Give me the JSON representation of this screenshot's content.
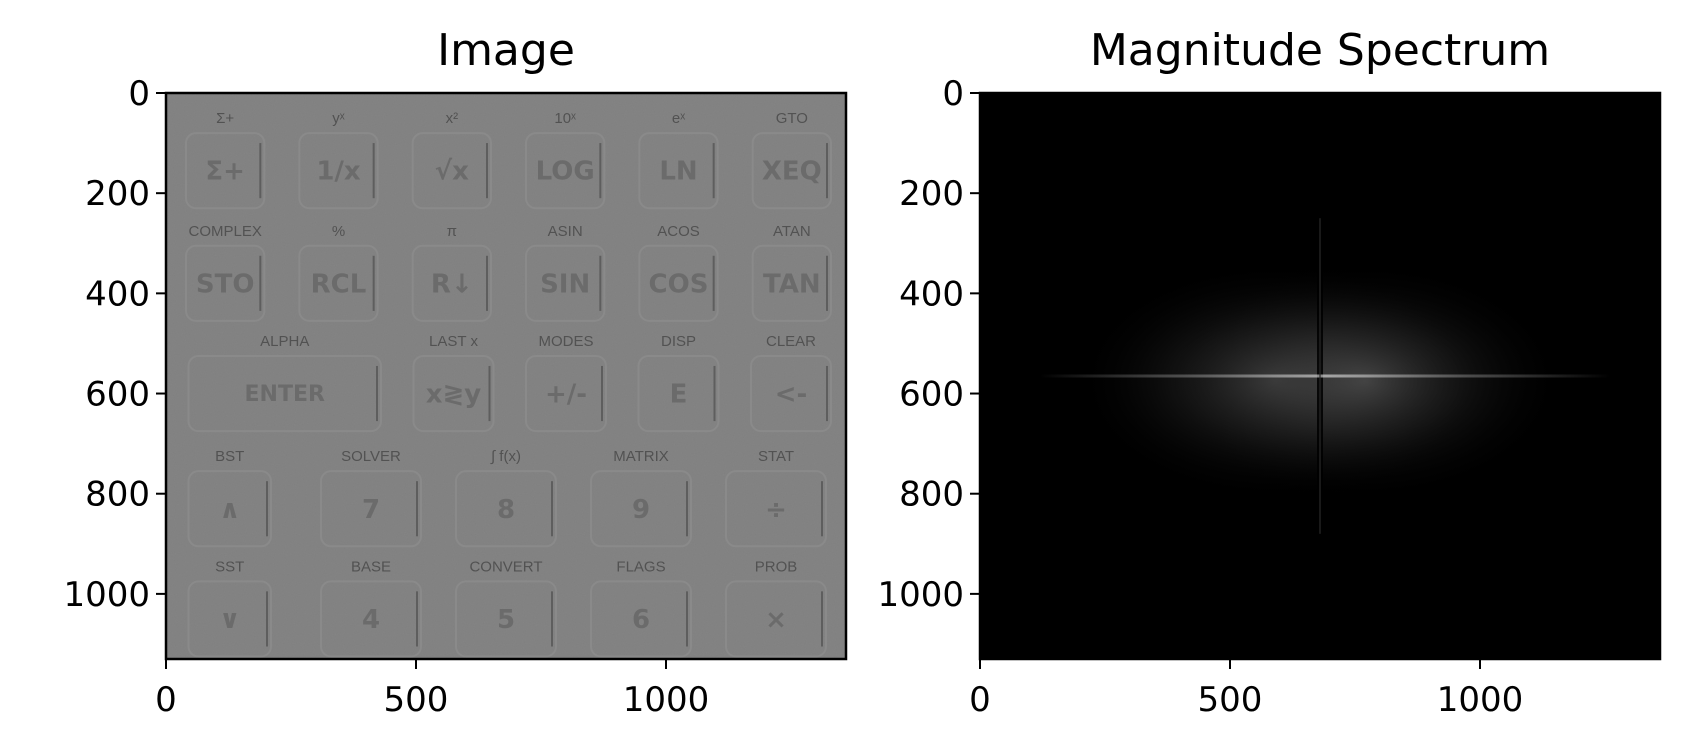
{
  "chart_data": [
    {
      "type": "image",
      "title": "Image",
      "xlabel": "",
      "ylabel": "",
      "xlim": [
        0,
        1360
      ],
      "ylim": [
        1130,
        0
      ],
      "xticks": [
        0,
        500,
        1000
      ],
      "yticks": [
        0,
        200,
        400,
        600,
        800,
        1000
      ],
      "xtick_labels": [
        "0",
        "500",
        "1000"
      ],
      "ytick_labels": [
        "0",
        "200",
        "400",
        "600",
        "800",
        "1000"
      ],
      "colormap": "gray",
      "content": {
        "rows": [
          {
            "keys": [
              {
                "label": "Σ+",
                "key": "Σ+"
              },
              {
                "label": "yˣ",
                "key": "1/x"
              },
              {
                "label": "x²",
                "key": "√x"
              },
              {
                "label": "10ˣ",
                "key": "LOG"
              },
              {
                "label": "eˣ",
                "key": "LN"
              },
              {
                "label": "GTO",
                "key": "XEQ"
              }
            ]
          },
          {
            "keys": [
              {
                "label": "COMPLEX",
                "key": "STO"
              },
              {
                "label": "%",
                "key": "RCL"
              },
              {
                "label": "π",
                "key": "R↓"
              },
              {
                "label": "ASIN",
                "key": "SIN"
              },
              {
                "label": "ACOS",
                "key": "COS"
              },
              {
                "label": "ATAN",
                "key": "TAN"
              }
            ]
          },
          {
            "keys": [
              {
                "label": "ALPHA",
                "key": "ENTER"
              },
              {
                "label": "LAST x",
                "key": "x≷y"
              },
              {
                "label": "MODES",
                "key": "+/-"
              },
              {
                "label": "DISP",
                "key": "E"
              },
              {
                "label": "CLEAR",
                "key": "<-"
              }
            ]
          },
          {
            "keys": [
              {
                "label": "BST",
                "key": "∧"
              },
              {
                "label": "SOLVER",
                "key": "7"
              },
              {
                "label": "∫ f(x)",
                "key": "8"
              },
              {
                "label": "MATRIX",
                "key": "9"
              },
              {
                "label": "STAT",
                "key": "÷"
              }
            ]
          },
          {
            "keys": [
              {
                "label": "SST",
                "key": "∨"
              },
              {
                "label": "BASE",
                "key": "4"
              },
              {
                "label": "CONVERT",
                "key": "5"
              },
              {
                "label": "FLAGS",
                "key": "6"
              },
              {
                "label": "PROB",
                "key": "×"
              }
            ]
          }
        ]
      }
    },
    {
      "type": "image",
      "title": "Magnitude Spectrum",
      "xlabel": "",
      "ylabel": "",
      "xlim": [
        0,
        1360
      ],
      "ylim": [
        1130,
        0
      ],
      "xticks": [
        0,
        500,
        1000
      ],
      "yticks": [
        0,
        200,
        400,
        600,
        800,
        1000
      ],
      "xtick_labels": [
        "0",
        "500",
        "1000"
      ],
      "ytick_labels": [
        "0",
        "200",
        "400",
        "600",
        "800",
        "1000"
      ],
      "colormap": "gray",
      "content": {
        "center": [
          680,
          565
        ],
        "horizontal_streak_x": [
          120,
          1260
        ]
      }
    }
  ],
  "colors": {
    "image_background": "#7f7f7f",
    "spectrum_background": "#000000",
    "axis": "#000000"
  }
}
